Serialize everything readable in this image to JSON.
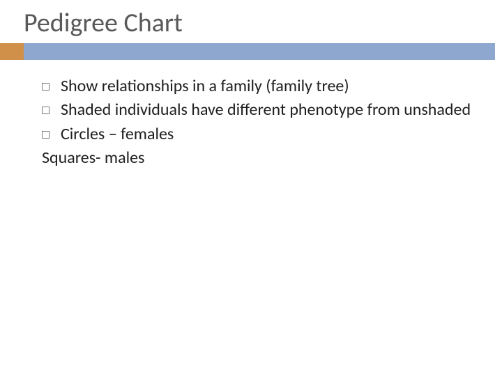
{
  "slide": {
    "title": "Pedigree Chart",
    "title_color": "#595959",
    "title_fontsize": 38,
    "accent_color": "#d19049",
    "bar_color": "#8ea7ce",
    "background_color": "#ffffff",
    "body_fontsize": 24,
    "body_color": "#202020",
    "bullet_marker_style": "hollow-square",
    "bullets": [
      "Show relationships in a family (family tree)",
      "Shaded individuals have different phenotype from unshaded",
      "Circles – females"
    ],
    "extra_line": "Squares- males"
  }
}
